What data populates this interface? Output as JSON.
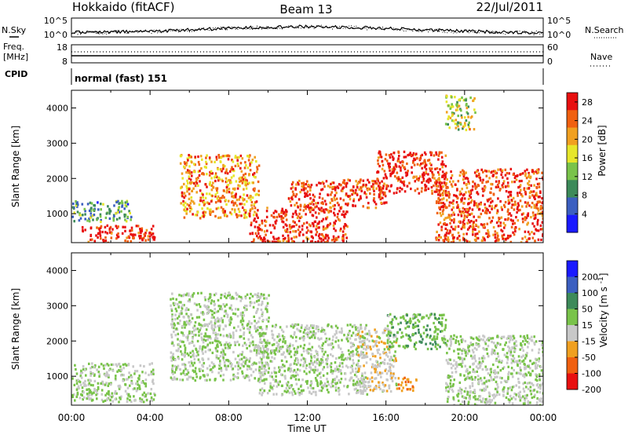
{
  "header": {
    "station": "Hokkaido (fitACF)",
    "beam": "Beam 13",
    "date": "22/Jul/2011"
  },
  "summary_panels": {
    "nsky": {
      "label": "N.Sky",
      "y_ticks": [
        "10^5",
        "10^0"
      ],
      "right_ticks": [
        "10^5",
        "10^0"
      ],
      "right_label": "N.Search"
    },
    "freq": {
      "label_top": "Freq.",
      "label_unit": "[MHz]",
      "y_ticks": [
        "18",
        "8"
      ],
      "right_ticks": [
        "60",
        "0"
      ],
      "right_label": "Nave"
    },
    "cpid": {
      "label": "CPID",
      "value": "normal (fast) 151"
    }
  },
  "chart_data": [
    {
      "type": "heatmap",
      "title": "",
      "quantity": "Power",
      "ylabel": "Slant Range [km]",
      "ylim": [
        180,
        4500
      ],
      "yticks": [
        "1000",
        "2000",
        "3000",
        "4000"
      ],
      "xlim": [
        0,
        24
      ],
      "colorbar": {
        "label": "Power [dB]",
        "ticks": [
          "4",
          "8",
          "12",
          "16",
          "20",
          "24",
          "28"
        ],
        "range": [
          0,
          30
        ],
        "colors": [
          "#1a1aff",
          "#3c5fc0",
          "#3d8a5a",
          "#79c34a",
          "#e6e62a",
          "#f0a020",
          "#f06010",
          "#e81010"
        ]
      },
      "features": [
        {
          "t0": 0.5,
          "t1": 4.2,
          "r0": 200,
          "r1": 700,
          "v": 28
        },
        {
          "t0": 0.0,
          "t1": 3.0,
          "r0": 800,
          "r1": 1400,
          "v": 10
        },
        {
          "t0": 5.5,
          "t1": 9.5,
          "r0": 900,
          "r1": 2700,
          "v": 22
        },
        {
          "t0": 9.0,
          "t1": 14.0,
          "r0": 200,
          "r1": 1200,
          "v": 28
        },
        {
          "t0": 11.0,
          "t1": 16.0,
          "r0": 1200,
          "r1": 2000,
          "v": 26
        },
        {
          "t0": 15.5,
          "t1": 19.0,
          "r0": 1600,
          "r1": 2800,
          "v": 28
        },
        {
          "t0": 18.5,
          "t1": 24.0,
          "r0": 200,
          "r1": 2300,
          "v": 26
        },
        {
          "t0": 19.0,
          "t1": 20.5,
          "r0": 3400,
          "r1": 4400,
          "v": 16
        }
      ]
    },
    {
      "type": "heatmap",
      "title": "",
      "quantity": "Velocity",
      "ylabel": "Slant Range [km]",
      "xlabel": "Time UT",
      "ylim": [
        180,
        4500
      ],
      "yticks": [
        "1000",
        "2000",
        "3000",
        "4000"
      ],
      "xlim": [
        0,
        24
      ],
      "xticks": [
        "00:00",
        "04:00",
        "08:00",
        "12:00",
        "16:00",
        "20:00",
        "00:00"
      ],
      "colorbar": {
        "label": "Velocity [m s^-1]",
        "ticks": [
          "200",
          "100",
          "50",
          "15",
          "-15",
          "-50",
          "-100",
          "-200"
        ],
        "range": [
          -250,
          250
        ],
        "colors": [
          "#1a1aff",
          "#3c5fc0",
          "#3d8a5a",
          "#79c34a",
          "#c8c8c8",
          "#f0a020",
          "#f06010",
          "#e81010"
        ]
      },
      "features": [
        {
          "t0": 0.0,
          "t1": 4.2,
          "r0": 300,
          "r1": 1400,
          "v": 0
        },
        {
          "t0": 5.0,
          "t1": 10.0,
          "r0": 900,
          "r1": 3400,
          "v": 0
        },
        {
          "t0": 9.5,
          "t1": 15.0,
          "r0": 500,
          "r1": 2500,
          "v": 0
        },
        {
          "t0": 14.5,
          "t1": 16.5,
          "r0": 600,
          "r1": 2400,
          "v": -40
        },
        {
          "t0": 16.0,
          "t1": 19.0,
          "r0": 1800,
          "r1": 2800,
          "v": 40
        },
        {
          "t0": 16.5,
          "t1": 17.5,
          "r0": 600,
          "r1": 1000,
          "v": -120
        },
        {
          "t0": 19.0,
          "t1": 24.0,
          "r0": 200,
          "r1": 2200,
          "v": 0
        }
      ]
    }
  ]
}
